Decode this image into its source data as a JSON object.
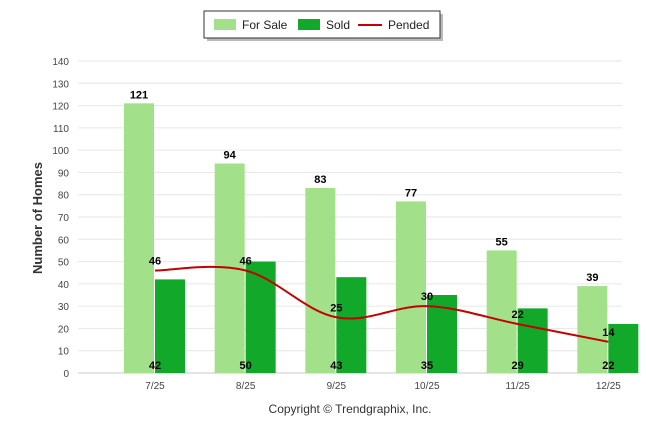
{
  "chart_data": {
    "type": "bar",
    "title": "",
    "xlabel": "",
    "ylabel": "Number of Homes",
    "ylim": [
      0,
      140
    ],
    "ytick_step": 10,
    "grid": true,
    "legend_position": "top-center",
    "categories": [
      "7/25",
      "8/25",
      "9/25",
      "10/25",
      "11/25",
      "12/25"
    ],
    "series": [
      {
        "name": "For Sale",
        "type": "bar",
        "color": "#a3e08a",
        "values": [
          121,
          94,
          83,
          77,
          55,
          39
        ]
      },
      {
        "name": "Sold",
        "type": "bar",
        "color": "#12a82a",
        "values": [
          42,
          50,
          43,
          35,
          29,
          22
        ]
      },
      {
        "name": "Pended",
        "type": "line",
        "color": "#c40000",
        "values": [
          46,
          46,
          25,
          30,
          22,
          14
        ]
      }
    ],
    "credit": "Copyright © Trendgraphix, Inc."
  }
}
